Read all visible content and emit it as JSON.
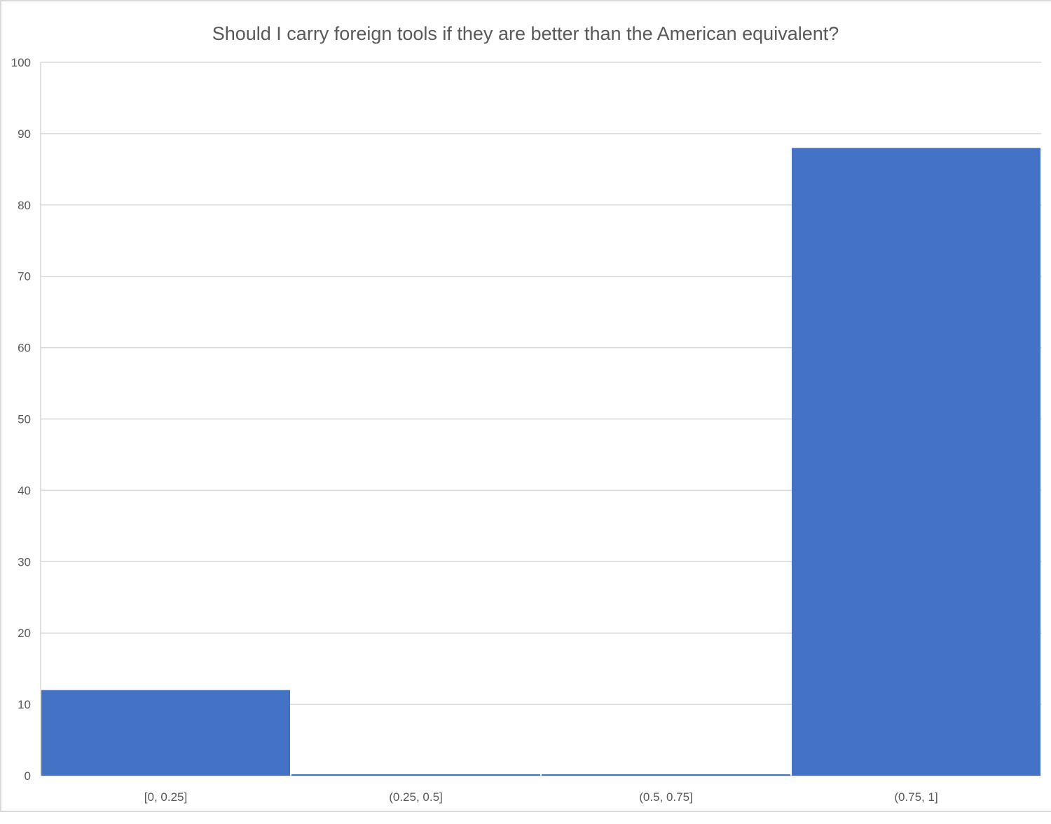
{
  "chart_data": {
    "type": "bar",
    "title": "Should I carry foreign tools if they are better than the American equivalent?",
    "categories": [
      "[0, 0.25]",
      "(0.25, 0.5]",
      "(0.5, 0.75]",
      "(0.75, 1]"
    ],
    "values": [
      12,
      0,
      0,
      88
    ],
    "xlabel": "",
    "ylabel": "",
    "ylim": [
      0,
      100
    ],
    "yticks": [
      0,
      10,
      20,
      30,
      40,
      50,
      60,
      70,
      80,
      90,
      100
    ],
    "grid": true,
    "legend": "none",
    "bar_color": "#4472C4",
    "grid_color": "#D9D9D9",
    "text_color": "#595959"
  }
}
